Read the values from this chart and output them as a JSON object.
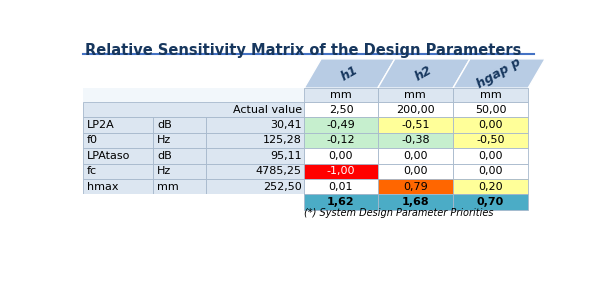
{
  "title": "Relative Sensitivity Matrix of the Design Parameters",
  "col_headers": [
    "h1",
    "h2",
    "hgap p"
  ],
  "col_units": [
    "mm",
    "mm",
    "mm"
  ],
  "actual_values": [
    "2,50",
    "200,00",
    "50,00"
  ],
  "row_labels": [
    "LP2A",
    "f0",
    "LPAtaso",
    "fc",
    "hmax"
  ],
  "row_units": [
    "dB",
    "Hz",
    "dB",
    "Hz",
    "mm"
  ],
  "row_values": [
    "30,41",
    "125,28",
    "95,11",
    "4785,25",
    "252,50"
  ],
  "data": [
    [
      "-0,49",
      "-0,51",
      "0,00"
    ],
    [
      "-0,12",
      "-0,38",
      "-0,50"
    ],
    [
      "0,00",
      "0,00",
      "0,00"
    ],
    [
      "-1,00",
      "0,00",
      "0,00"
    ],
    [
      "0,01",
      "0,79",
      "0,20"
    ]
  ],
  "priority_row": [
    "1,62",
    "1,68",
    "0,70"
  ],
  "cell_colors": [
    [
      "#c6efce",
      "#ffff99",
      "#ffff99"
    ],
    [
      "#c6efce",
      "#c6efce",
      "#ffff99"
    ],
    [
      "#ffffff",
      "#ffffff",
      "#ffffff"
    ],
    [
      "#ff0000",
      "#ffffff",
      "#ffffff"
    ],
    [
      "#ffffff",
      "#ff6600",
      "#ffff99"
    ]
  ],
  "priority_color": "#4bacc6",
  "header_slant_bg": "#b8cce4",
  "left_col_bg": "#dce6f1",
  "actual_row_bg": "#dce6f1",
  "unit_row_bg": "#dce6f1",
  "footer_text": "(*) System Design Parameter Priorities",
  "title_color": "#17375e",
  "title_fontsize": 10.5,
  "table_fontsize": 8.0
}
